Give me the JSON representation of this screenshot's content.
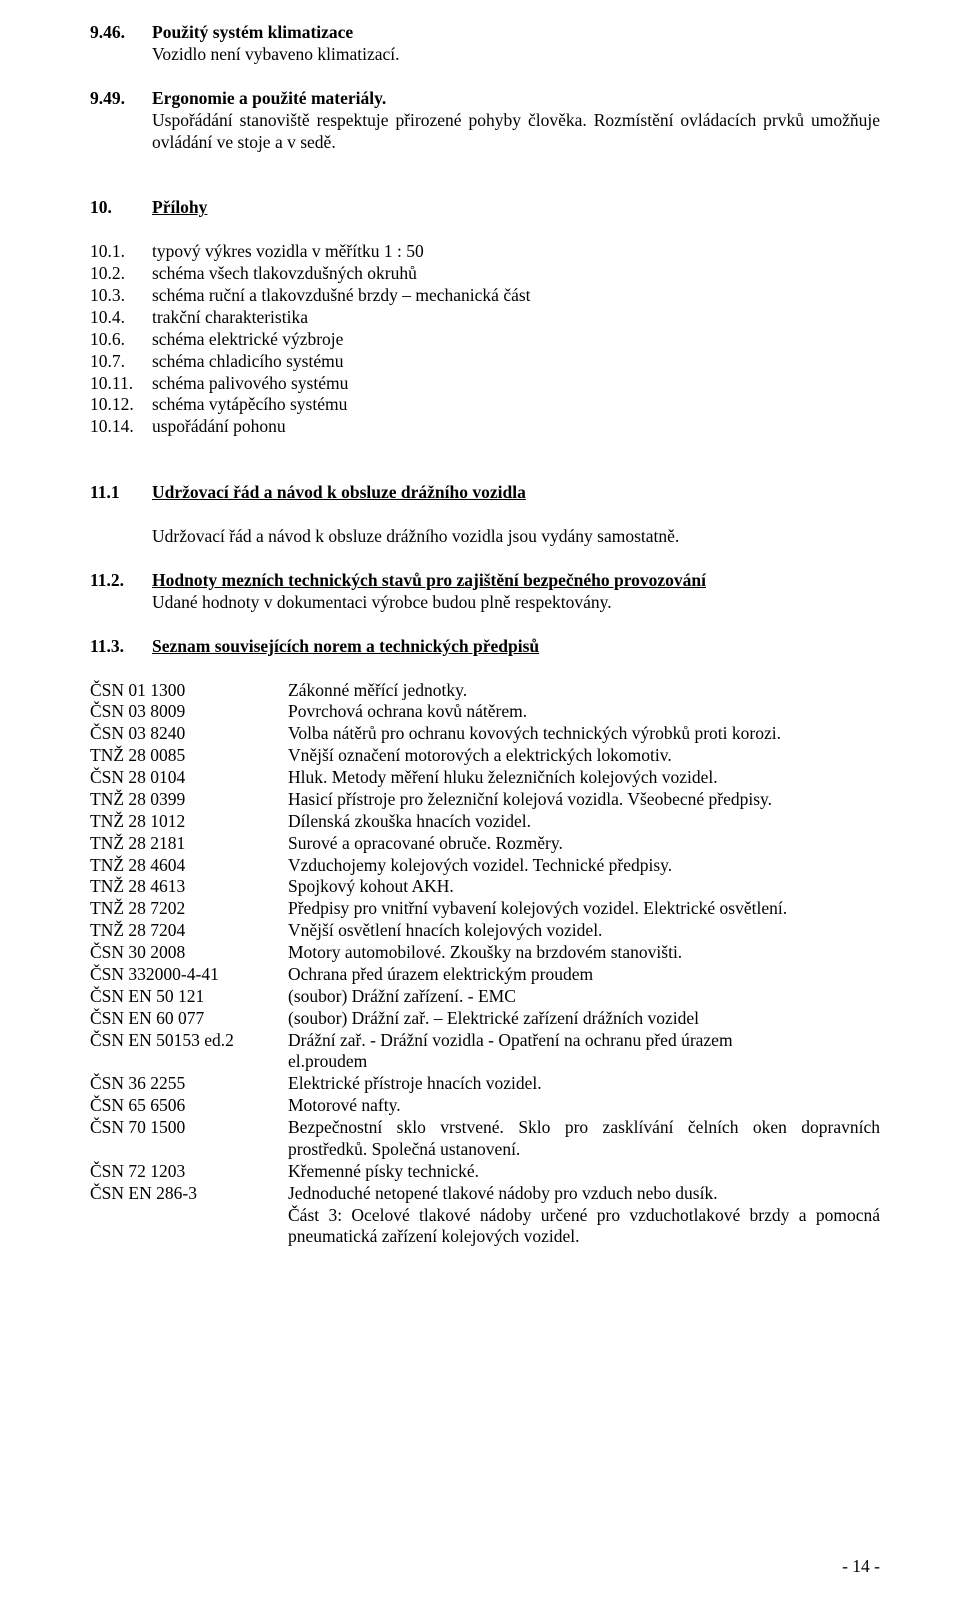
{
  "s946": {
    "num": "9.46.",
    "title": "Použitý systém klimatizace",
    "body": "Vozidlo není vybaveno klimatizací."
  },
  "s949": {
    "num": "9.49.",
    "title": "Ergonomie a použité materiály.",
    "body": "Uspořádání stanoviště respektuje přirozené pohyby člověka. Rozmístění ovládacích prvků umožňuje ovládání ve stoje a v sedě."
  },
  "s10": {
    "num": "10.",
    "title": "Přílohy",
    "items": [
      {
        "num": "10.1.",
        "text": "typový výkres vozidla v měřítku 1 : 50"
      },
      {
        "num": "10.2.",
        "text": "schéma všech tlakovzdušných okruhů"
      },
      {
        "num": "10.3.",
        "text": "schéma ruční a tlakovzdušné brzdy – mechanická část"
      },
      {
        "num": "10.4.",
        "text": "trakční charakteristika"
      },
      {
        "num": "10.6.",
        "text": "schéma elektrické výzbroje"
      },
      {
        "num": "10.7.",
        "text": "schéma chladicího systému"
      },
      {
        "num": "10.11.",
        "text": "schéma palivového systému"
      },
      {
        "num": "10.12.",
        "text": "schéma vytápěcího systému"
      },
      {
        "num": "10.14.",
        "text": "uspořádání pohonu"
      }
    ]
  },
  "s111": {
    "num": "11.1",
    "title": "Udržovací řád a návod k obsluze drážního vozidla",
    "body": "Udržovací řád a návod k obsluze drážního vozidla jsou vydány samostatně."
  },
  "s112": {
    "num": "11.2.",
    "title": "Hodnoty mezních technických stavů pro zajištění bezpečného provozování",
    "body": "Udané hodnoty v dokumentaci výrobce budou plně respektovány."
  },
  "s113": {
    "num": "11.3.",
    "title": "Seznam souvisejících norem a technických předpisů"
  },
  "standards": [
    {
      "code": "ČSN 01 1300",
      "desc": "Zákonné měřící jednotky."
    },
    {
      "code": "ČSN 03 8009",
      "desc": "Povrchová ochrana kovů nátěrem."
    },
    {
      "code": "ČSN 03 8240",
      "desc": "Volba nátěrů pro ochranu kovových technických výrobků proti korozi."
    },
    {
      "code": "TNŽ 28 0085",
      "desc": "Vnější označení motorových a elektrických lokomotiv."
    },
    {
      "code": "ČSN 28 0104",
      "desc": "Hluk. Metody měření hluku železničních kolejových vozidel."
    },
    {
      "code": "TNŽ 28 0399",
      "desc": "Hasicí přístroje pro železniční kolejová vozidla. Všeobecné předpisy."
    },
    {
      "code": "TNŽ 28 1012",
      "desc": "Dílenská zkouška hnacích vozidel."
    },
    {
      "code": "TNŽ 28 2181",
      "desc": "Surové a opracované obruče. Rozměry."
    },
    {
      "code": "TNŽ 28 4604",
      "desc": "Vzduchojemy kolejových vozidel. Technické předpisy."
    },
    {
      "code": "TNŽ 28 4613",
      "desc": "Spojkový kohout AKH."
    },
    {
      "code": "TNŽ 28 7202",
      "desc": "Předpisy pro vnitřní vybavení kolejových vozidel. Elektrické osvětlení."
    },
    {
      "code": "TNŽ 28 7204",
      "desc": "Vnější osvětlení hnacích kolejových vozidel."
    },
    {
      "code": "ČSN 30 2008",
      "desc": "Motory automobilové. Zkoušky na brzdovém stanovišti."
    },
    {
      "code": "ČSN 332000-4-41",
      "desc": "Ochrana před úrazem elektrickým proudem"
    },
    {
      "code": "ČSN EN 50 121",
      "desc": "(soubor) Drážní zařízení. - EMC"
    },
    {
      "code": "ČSN EN 60 077",
      "desc": "(soubor) Drážní zař. – Elektrické zařízení drážních vozidel"
    },
    {
      "code": "ČSN EN 50153 ed.2",
      "desc": "Drážní zař. - Drážní vozidla - Opatření na ochranu před úrazem"
    },
    {
      "code": "",
      "desc": " el.proudem"
    },
    {
      "code": "ČSN 36 2255",
      "desc": "Elektrické přístroje hnacích vozidel."
    },
    {
      "code": "ČSN 65 6506",
      "desc": "Motorové nafty."
    },
    {
      "code": "ČSN 70 1500",
      "desc": "Bezpečnostní sklo vrstvené. Sklo pro zasklívání čelních oken dopravních prostředků. Společná ustanovení."
    },
    {
      "code": "ČSN 72 1203",
      "desc": "Křemenné písky technické."
    },
    {
      "code": "ČSN EN 286-3",
      "desc": "Jednoduché netopené tlakové nádoby pro vzduch nebo dusík."
    },
    {
      "code": "",
      "desc": "Část 3: Ocelové tlakové nádoby určené pro vzduchotlakové brzdy a pomocná pneumatická zařízení kolejových vozidel."
    }
  ],
  "footer": "- 14 -"
}
